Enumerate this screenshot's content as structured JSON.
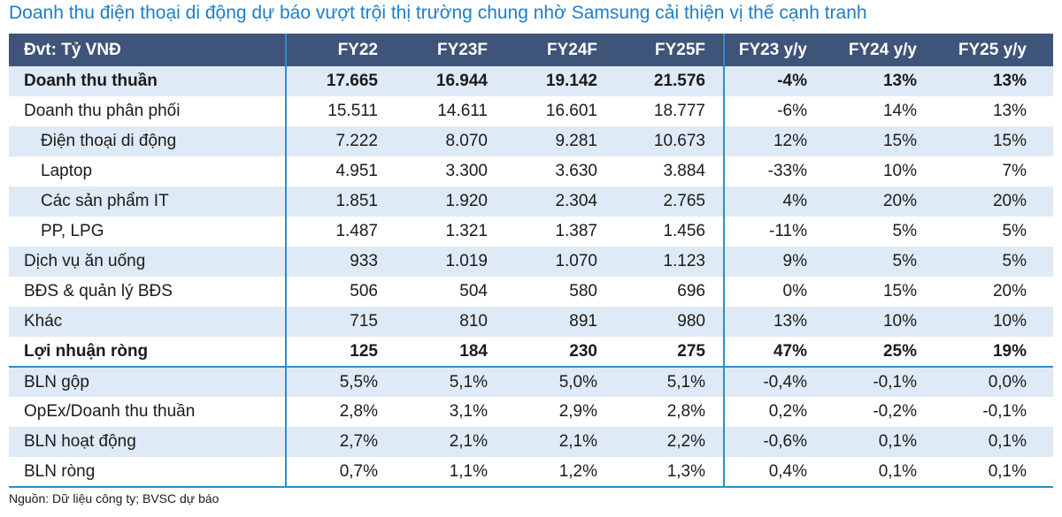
{
  "title": "Doanh thu điện thoại di động dự báo vượt trội thị trường chung nhờ Samsung cải thiện vị thế cạnh tranh",
  "source_note": "Nguồn: Dữ liệu công ty; BVSC dự báo",
  "colors": {
    "title_color": "#1E7EC8",
    "header_bg": "#3E5478",
    "band_row_bg": "#DEEAF5",
    "divider": "#2E8FC4"
  },
  "table": {
    "unit_label": "Đvt: Tỷ VNĐ",
    "columns": [
      "FY22",
      "FY23F",
      "FY24F",
      "FY25F",
      "FY23 y/y",
      "FY24 y/y",
      "FY25 y/y"
    ],
    "rows": [
      {
        "label": "Doanh thu thuần",
        "bold": true,
        "indent": 0,
        "separator_below": false,
        "values": [
          "17.665",
          "16.944",
          "19.142",
          "21.576",
          "-4%",
          "13%",
          "13%"
        ]
      },
      {
        "label": "Doanh thu phân phối",
        "bold": false,
        "indent": 0,
        "separator_below": false,
        "values": [
          "15.511",
          "14.611",
          "16.601",
          "18.777",
          "-6%",
          "14%",
          "13%"
        ]
      },
      {
        "label": "Điện thoại di động",
        "bold": false,
        "indent": 1,
        "separator_below": false,
        "values": [
          "7.222",
          "8.070",
          "9.281",
          "10.673",
          "12%",
          "15%",
          "15%"
        ]
      },
      {
        "label": "Laptop",
        "bold": false,
        "indent": 1,
        "separator_below": false,
        "values": [
          "4.951",
          "3.300",
          "3.630",
          "3.884",
          "-33%",
          "10%",
          "7%"
        ]
      },
      {
        "label": "Các sản phẩm IT",
        "bold": false,
        "indent": 1,
        "separator_below": false,
        "values": [
          "1.851",
          "1.920",
          "2.304",
          "2.765",
          "4%",
          "20%",
          "20%"
        ]
      },
      {
        "label": "PP, LPG",
        "bold": false,
        "indent": 1,
        "separator_below": false,
        "values": [
          "1.487",
          "1.321",
          "1.387",
          "1.456",
          "-11%",
          "5%",
          "5%"
        ]
      },
      {
        "label": "Dịch vụ ăn uống",
        "bold": false,
        "indent": 0,
        "separator_below": false,
        "values": [
          "933",
          "1.019",
          "1.070",
          "1.123",
          "9%",
          "5%",
          "5%"
        ]
      },
      {
        "label": "BĐS & quản lý BĐS",
        "bold": false,
        "indent": 0,
        "separator_below": false,
        "values": [
          "506",
          "504",
          "580",
          "696",
          "0%",
          "15%",
          "20%"
        ]
      },
      {
        "label": "Khác",
        "bold": false,
        "indent": 0,
        "separator_below": false,
        "values": [
          "715",
          "810",
          "891",
          "980",
          "13%",
          "10%",
          "10%"
        ]
      },
      {
        "label": "Lợi nhuận ròng",
        "bold": true,
        "indent": 0,
        "separator_below": true,
        "values": [
          "125",
          "184",
          "230",
          "275",
          "47%",
          "25%",
          "19%"
        ]
      },
      {
        "label": "BLN gộp",
        "bold": false,
        "indent": 0,
        "separator_below": false,
        "values": [
          "5,5%",
          "5,1%",
          "5,0%",
          "5,1%",
          "-0,4%",
          "-0,1%",
          "0,0%"
        ]
      },
      {
        "label": "OpEx/Doanh thu thuần",
        "bold": false,
        "indent": 0,
        "separator_below": false,
        "values": [
          "2,8%",
          "3,1%",
          "2,9%",
          "2,8%",
          "0,2%",
          "-0,2%",
          "-0,1%"
        ]
      },
      {
        "label": "BLN hoạt động",
        "bold": false,
        "indent": 0,
        "separator_below": false,
        "values": [
          "2,7%",
          "2,1%",
          "2,1%",
          "2,2%",
          "-0,6%",
          "0,1%",
          "0,1%"
        ]
      },
      {
        "label": "BLN ròng",
        "bold": false,
        "indent": 0,
        "separator_below": false,
        "values": [
          "0,7%",
          "1,1%",
          "1,2%",
          "1,3%",
          "0,4%",
          "0,1%",
          "0,1%"
        ]
      }
    ]
  }
}
